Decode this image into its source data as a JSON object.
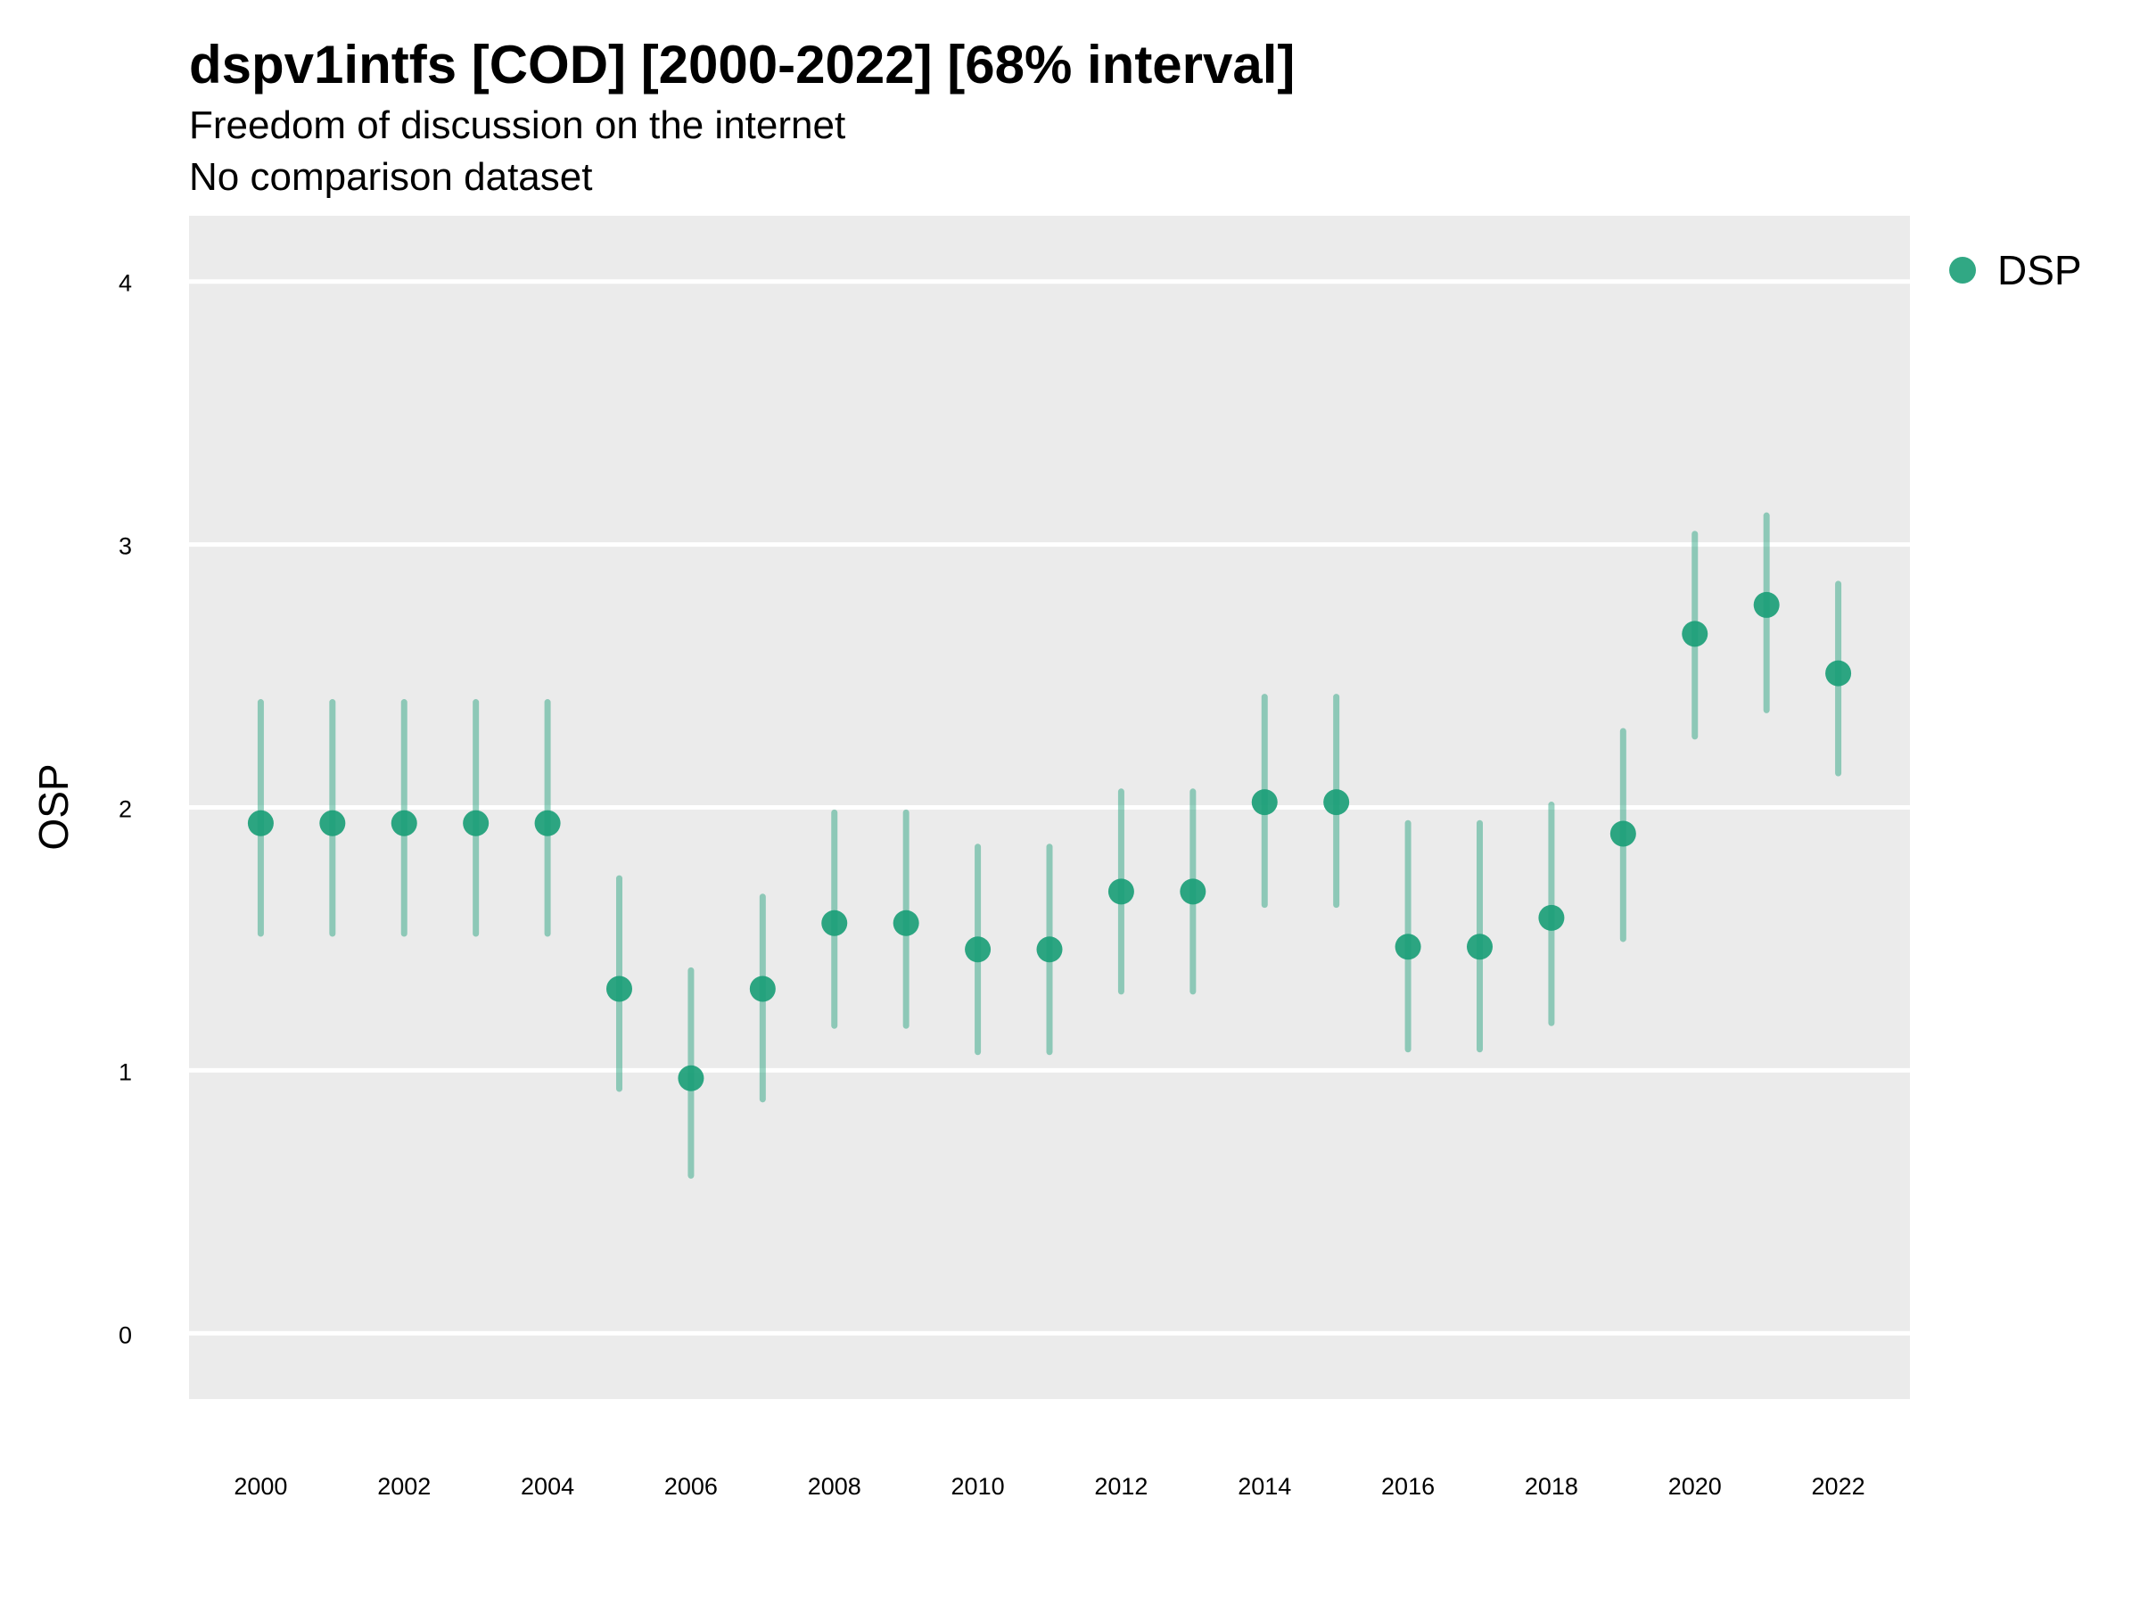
{
  "title": "dspv1intfs [COD] [2000-2022] [68% interval]",
  "subtitle": "Freedom of discussion on the internet",
  "caption": "No comparison dataset",
  "colors": {
    "series": "#1b9e77",
    "panel": "#ebebeb",
    "grid": "#ffffff"
  },
  "chart_data": {
    "type": "scatter",
    "ylabel": "OSP",
    "xlabel": "",
    "ylim": [
      -0.25,
      4.25
    ],
    "xlim": [
      1999,
      2023
    ],
    "yticks": [
      0,
      1,
      2,
      3,
      4
    ],
    "xticks": [
      2000,
      2002,
      2004,
      2006,
      2008,
      2010,
      2012,
      2014,
      2016,
      2018,
      2020,
      2022
    ],
    "grid": true,
    "legend_position": "right",
    "series": [
      {
        "name": "DSP",
        "color": "#1b9e77",
        "x": [
          2000,
          2001,
          2002,
          2003,
          2004,
          2005,
          2006,
          2007,
          2008,
          2009,
          2010,
          2011,
          2012,
          2013,
          2014,
          2015,
          2016,
          2017,
          2018,
          2019,
          2020,
          2021,
          2022
        ],
        "y": [
          1.94,
          1.94,
          1.94,
          1.94,
          1.94,
          1.31,
          0.97,
          1.31,
          1.56,
          1.56,
          1.46,
          1.46,
          1.68,
          1.68,
          2.02,
          2.02,
          1.47,
          1.47,
          1.58,
          1.9,
          2.66,
          2.77,
          2.51
        ],
        "lower": [
          1.52,
          1.52,
          1.52,
          1.52,
          1.52,
          0.93,
          0.6,
          0.89,
          1.17,
          1.17,
          1.07,
          1.07,
          1.3,
          1.3,
          1.63,
          1.63,
          1.08,
          1.08,
          1.18,
          1.5,
          2.27,
          2.37,
          2.13
        ],
        "upper": [
          2.4,
          2.4,
          2.4,
          2.4,
          2.4,
          1.73,
          1.38,
          1.66,
          1.98,
          1.98,
          1.85,
          1.85,
          2.06,
          2.06,
          2.42,
          2.42,
          1.94,
          1.94,
          2.01,
          2.29,
          3.04,
          3.11,
          2.85
        ]
      }
    ]
  }
}
